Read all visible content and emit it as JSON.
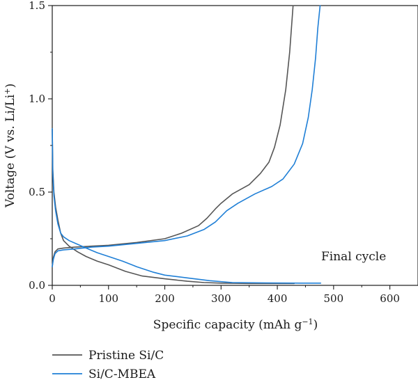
{
  "chart_data": {
    "type": "line",
    "xlabel": "Specific capacity (mAh g",
    "xlabel_sup": "−1",
    "xlabel_end": ")",
    "ylabel": "Voltage (V vs. Li/Li",
    "ylabel_sup": "+",
    "ylabel_end": ")",
    "xlim": [
      0,
      650
    ],
    "ylim": [
      0,
      1.5
    ],
    "xticks": [
      0,
      100,
      200,
      300,
      400,
      500,
      600
    ],
    "yticks": [
      0.0,
      0.5,
      1.0,
      1.5
    ],
    "xtick_labels": [
      "0",
      "100",
      "200",
      "300",
      "400",
      "500",
      "600"
    ],
    "ytick_labels": [
      "0.0",
      "0.5",
      "1.0",
      "1.5"
    ],
    "annotation": "Final cycle",
    "legend_position": "below",
    "grid": false,
    "series": [
      {
        "name": "Pristine Si/C",
        "color": "#555555",
        "discharge": {
          "x": [
            0,
            1,
            3,
            6,
            10,
            15,
            20,
            30,
            45,
            60,
            80,
            100,
            130,
            160,
            200,
            240,
            270,
            300,
            350,
            400,
            430
          ],
          "y": [
            0.84,
            0.62,
            0.5,
            0.42,
            0.35,
            0.28,
            0.24,
            0.21,
            0.18,
            0.155,
            0.13,
            0.11,
            0.075,
            0.05,
            0.035,
            0.022,
            0.015,
            0.012,
            0.01,
            0.01,
            0.01
          ]
        },
        "charge": {
          "x": [
            0,
            2,
            5,
            10,
            20,
            40,
            70,
            100,
            150,
            200,
            230,
            260,
            275,
            290,
            300,
            320,
            350,
            370,
            385,
            395,
            405,
            415,
            422,
            428
          ],
          "y": [
            0.1,
            0.15,
            0.18,
            0.195,
            0.2,
            0.205,
            0.21,
            0.215,
            0.23,
            0.25,
            0.28,
            0.32,
            0.36,
            0.41,
            0.44,
            0.49,
            0.54,
            0.6,
            0.66,
            0.74,
            0.86,
            1.05,
            1.25,
            1.5
          ]
        }
      },
      {
        "name": "Si/C-MBEA",
        "color": "#1f7fd6",
        "discharge": {
          "x": [
            0,
            1,
            3,
            6,
            10,
            15,
            20,
            30,
            45,
            60,
            80,
            100,
            125,
            150,
            180,
            200,
            240,
            280,
            320,
            380,
            440,
            477
          ],
          "y": [
            0.84,
            0.6,
            0.48,
            0.4,
            0.33,
            0.28,
            0.26,
            0.24,
            0.22,
            0.2,
            0.175,
            0.155,
            0.13,
            0.1,
            0.07,
            0.055,
            0.04,
            0.025,
            0.015,
            0.013,
            0.012,
            0.012
          ]
        },
        "charge": {
          "x": [
            0,
            2,
            5,
            10,
            20,
            40,
            70,
            100,
            150,
            200,
            240,
            270,
            290,
            310,
            330,
            360,
            390,
            410,
            430,
            445,
            455,
            462,
            468,
            472,
            476
          ],
          "y": [
            0.1,
            0.14,
            0.17,
            0.185,
            0.19,
            0.195,
            0.205,
            0.21,
            0.225,
            0.24,
            0.265,
            0.3,
            0.34,
            0.4,
            0.44,
            0.49,
            0.53,
            0.57,
            0.65,
            0.76,
            0.9,
            1.05,
            1.22,
            1.38,
            1.5
          ]
        }
      }
    ]
  }
}
